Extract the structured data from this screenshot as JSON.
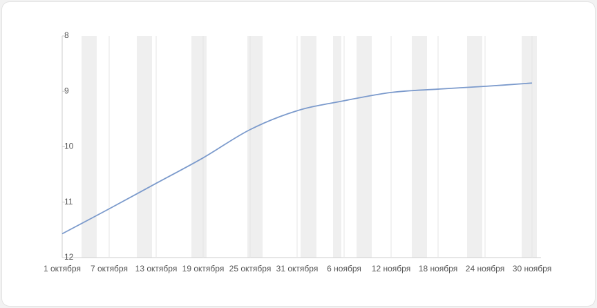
{
  "chart_data": {
    "type": "line",
    "categories": [
      "1 октября",
      "7 октября",
      "13 октября",
      "19 октября",
      "25 октября",
      "31 октября",
      "6 ноября",
      "12 ноября",
      "18 ноября",
      "24 ноября",
      "30 ноября"
    ],
    "series": [
      {
        "color": "#7b9acc",
        "values": [
          11.57,
          11.12,
          10.66,
          10.2,
          9.69,
          9.35,
          9.17,
          9.02,
          8.96,
          8.91,
          8.85
        ]
      }
    ],
    "ylim": [
      12,
      8
    ],
    "yticks": [
      8,
      9,
      10,
      11,
      12
    ],
    "grid": true
  }
}
